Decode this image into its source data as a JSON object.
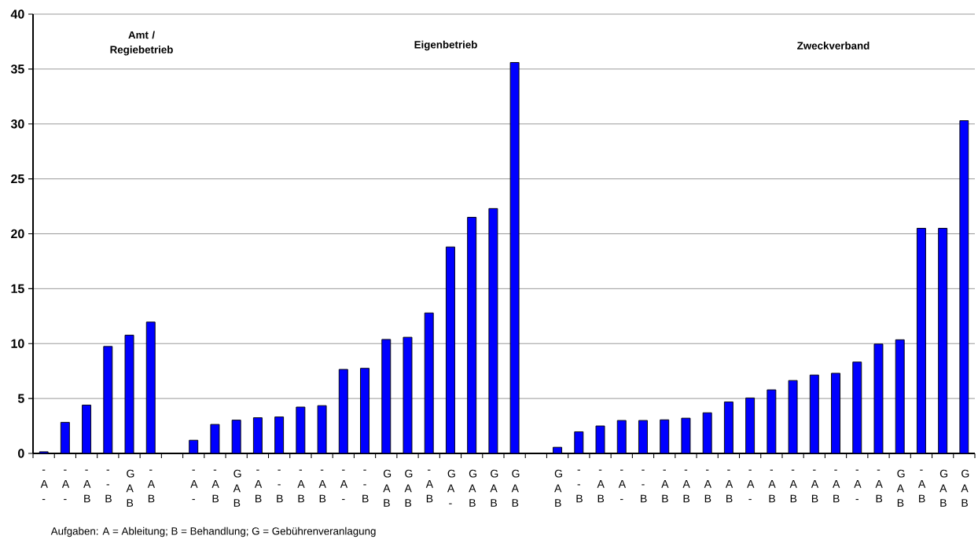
{
  "chart_data": {
    "type": "bar",
    "categories": [
      "- A -",
      "- A -",
      "- A B",
      "- - B",
      "G A B",
      "- A B",
      null,
      "- A -",
      "- A B",
      "G A B",
      "- A B",
      "- - B",
      "- A B",
      "- A B",
      "- A -",
      "- - B",
      "G A B",
      "G A B",
      "- A B",
      "G A -",
      "G A B",
      "G A B",
      "G A B",
      null,
      "G A B",
      "- - B",
      "- A B",
      "- A -",
      "- - B",
      "- A B",
      "- A B",
      "- A B",
      "- A B",
      "- A -",
      "- A B",
      "- A B",
      "- A B",
      "- A B",
      "- A -",
      "- A B",
      "G A B",
      "- A B",
      "G A B",
      "G A B"
    ],
    "values": [
      0.15,
      2.83,
      4.4,
      9.74,
      10.77,
      11.96,
      null,
      1.2,
      2.64,
      3.03,
      3.25,
      3.32,
      4.22,
      4.35,
      7.65,
      7.75,
      10.38,
      10.58,
      12.79,
      18.8,
      21.5,
      22.3,
      35.6,
      null,
      0.56,
      1.97,
      2.5,
      3.0,
      3.0,
      3.06,
      3.21,
      3.7,
      4.69,
      5.05,
      5.79,
      6.64,
      7.14,
      7.3,
      8.32,
      9.96,
      10.35,
      20.5,
      20.5,
      30.3
    ],
    "color": "#0000ff",
    "ylim": [
      0,
      40
    ],
    "yticks": [
      0,
      5,
      10,
      15,
      20,
      25,
      30,
      35,
      40
    ],
    "grid": "y",
    "annotations": [
      "Amt / Regiebetrieb",
      "Eigenbetrieb",
      "Zweckverband",
      "Aufgaben: A = Ableitung; B  = Behandlung; G =  Gebührenveranlagung"
    ]
  }
}
